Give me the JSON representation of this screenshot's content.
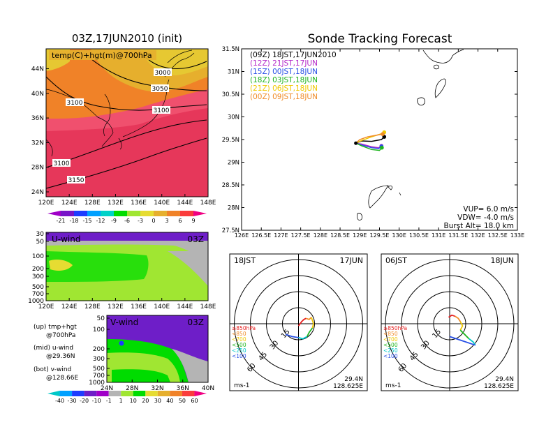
{
  "map_panel": {
    "title": "03Z,17JUN2010 (init)",
    "label": "temp(C)+hgt(m)@700hPa",
    "x_ticks": [
      "120E",
      "124E",
      "128E",
      "132E",
      "136E",
      "140E",
      "144E",
      "148E"
    ],
    "y_ticks": [
      "24N",
      "28N",
      "32N",
      "36N",
      "40N",
      "44N"
    ],
    "contour_labels": [
      "3000",
      "3050",
      "3100",
      "3100",
      "3100",
      "3150"
    ],
    "colorbar_ticks": [
      "-21",
      "-18",
      "-15",
      "-12",
      "-9",
      "-6",
      "-3",
      "0",
      "3",
      "6",
      "9"
    ],
    "colorbar_colors": [
      "#a000c8",
      "#7814c8",
      "#1e3cff",
      "#00a0ff",
      "#00d2c8",
      "#00dc00",
      "#a0e632",
      "#e6dc32",
      "#e6af2d",
      "#f08228",
      "#fa3c3c",
      "#f00082"
    ]
  },
  "u_panel": {
    "label": "U-wind",
    "time": "03Z",
    "y_ticks": [
      "30",
      "50",
      "100",
      "200",
      "300",
      "500",
      "700",
      "1000"
    ],
    "x_ticks": [
      "120E",
      "124E",
      "128E",
      "132E",
      "136E",
      "140E",
      "144E",
      "148E"
    ]
  },
  "v_panel": {
    "label": "V-wind",
    "time": "03Z",
    "y_ticks": [
      "50",
      "100",
      "200",
      "300",
      "500",
      "700",
      "1000"
    ],
    "x_ticks": [
      "24N",
      "28N",
      "32N",
      "36N",
      "40N"
    ]
  },
  "legend_notes": [
    {
      "line1": "(up) tmp+hgt",
      "line2": "@700hPa"
    },
    {
      "line1": "(mid) u-wind",
      "line2": "@29.36N"
    },
    {
      "line1": "(bot) v-wind",
      "line2": "@128.66E"
    }
  ],
  "wind_colorbar": {
    "ticks": [
      "-40",
      "-30",
      "-20",
      "-10",
      "-1",
      "1",
      "10",
      "20",
      "30",
      "40",
      "50",
      "60"
    ],
    "colors": [
      "#00c8c8",
      "#00a0ff",
      "#1e3cff",
      "#6e1ec8",
      "#a000c8",
      "#b4b4b4",
      "#a0e632",
      "#00dc00",
      "#e6dc32",
      "#e6af2d",
      "#f08228",
      "#fa3c3c",
      "#f00082"
    ]
  },
  "tracking": {
    "title": "Sonde Tracking Forecast",
    "x_ticks": [
      "126E",
      "126.5E",
      "127E",
      "127.5E",
      "128E",
      "128.5E",
      "129E",
      "129.5E",
      "130E",
      "130.5E",
      "131E",
      "131.5E",
      "132E",
      "132.5E",
      "133E"
    ],
    "y_ticks": [
      "27.5N",
      "28N",
      "28.5N",
      "29N",
      "29.5N",
      "30N",
      "30.5N",
      "31N",
      "31.5N"
    ],
    "legend": [
      {
        "text": "(09Z) 18JST,17JUN2010",
        "color": "#000000"
      },
      {
        "text": "(12Z) 21JST,17JUN",
        "color": "#b428c8"
      },
      {
        "text": "(15Z) 00JST,18JUN",
        "color": "#2850e6"
      },
      {
        "text": "(18Z) 03JST,18JUN",
        "color": "#1eb41e"
      },
      {
        "text": "(21Z) 06JST,18JUN",
        "color": "#f0c800"
      },
      {
        "text": "(00Z) 09JST,18JUN",
        "color": "#f08c28"
      }
    ],
    "params": [
      "VUP= 6.0 m/s",
      "VDW= -4.0 m/s",
      "Burst Alt= 18.0 km"
    ]
  },
  "chart_data": [
    {
      "type": "line",
      "title": "Sonde Tracking Forecast",
      "xlabel": "",
      "ylabel": "",
      "xlim": [
        126,
        133
      ],
      "ylim": [
        27.5,
        31.5
      ],
      "series": [
        {
          "name": "(09Z) 18JST,17JUN2010",
          "color": "#000000",
          "x": [
            128.9,
            129.05,
            129.3,
            129.55,
            129.62
          ],
          "y": [
            29.42,
            29.47,
            29.46,
            29.5,
            29.56
          ]
        },
        {
          "name": "(12Z) 21JST,17JUN",
          "color": "#b428c8",
          "x": [
            128.9,
            129.05,
            129.3,
            129.48,
            129.55
          ],
          "y": [
            29.42,
            29.4,
            29.34,
            29.32,
            29.36
          ]
        },
        {
          "name": "(15Z) 00JST,18JUN",
          "color": "#2850e6",
          "x": [
            128.9,
            129.05,
            129.3,
            129.48,
            129.55
          ],
          "y": [
            29.42,
            29.38,
            29.32,
            29.3,
            29.35
          ]
        },
        {
          "name": "(18Z) 03JST,18JUN",
          "color": "#1eb41e",
          "x": [
            128.9,
            129.05,
            129.3,
            129.5,
            129.56
          ],
          "y": [
            29.42,
            29.36,
            29.28,
            29.26,
            29.32
          ]
        },
        {
          "name": "(21Z) 06JST,18JUN",
          "color": "#f0c800",
          "x": [
            128.9,
            129.05,
            129.3,
            129.52,
            129.62
          ],
          "y": [
            29.42,
            29.48,
            29.56,
            29.62,
            29.66
          ]
        },
        {
          "name": "(00Z) 09JST,18JUN",
          "color": "#f08c28",
          "x": [
            128.9,
            129.0,
            129.2,
            129.45,
            129.58
          ],
          "y": [
            29.42,
            29.5,
            29.56,
            29.6,
            29.62
          ]
        }
      ]
    },
    {
      "type": "scatter",
      "title": "18JST 17JUN",
      "date": "17JUN",
      "time": "18JST",
      "units": "ms-1",
      "ring_labels": [
        "15",
        "30",
        "45",
        "60"
      ],
      "location": [
        "29.4N",
        "128.625E"
      ],
      "legend_levels": [
        {
          "label": "≥850hPa",
          "color": "#e61e1e"
        },
        {
          "label": "<850",
          "color": "#f08c28"
        },
        {
          "label": "<700",
          "color": "#f0c800"
        },
        {
          "label": "<500",
          "color": "#1eb41e"
        },
        {
          "label": "<250",
          "color": "#00c8c8"
        },
        {
          "label": "<100",
          "color": "#2850e6"
        }
      ],
      "series": [
        {
          "name": "≥850hPa",
          "color": "#e61e1e",
          "x": [
            0,
            3,
            5,
            7
          ],
          "y": [
            -2,
            2,
            4,
            5
          ]
        },
        {
          "name": "<850",
          "color": "#f08c28",
          "x": [
            7,
            10,
            12
          ],
          "y": [
            5,
            4,
            6
          ]
        },
        {
          "name": "<700",
          "color": "#f0c800",
          "x": [
            12,
            14,
            13
          ],
          "y": [
            6,
            0,
            -4
          ]
        },
        {
          "name": "<500",
          "color": "#1eb41e",
          "x": [
            13,
            10,
            8
          ],
          "y": [
            -4,
            -8,
            -12
          ]
        },
        {
          "name": "<250",
          "color": "#00c8c8",
          "x": [
            8,
            4,
            0
          ],
          "y": [
            -12,
            -14,
            -13
          ]
        },
        {
          "name": "<100",
          "color": "#2850e6",
          "x": [
            0,
            -6,
            -12
          ],
          "y": [
            -13,
            -12,
            -10
          ]
        }
      ]
    },
    {
      "type": "scatter",
      "title": "06JST 18JUN",
      "date": "18JUN",
      "time": "06JST",
      "units": "ms-1",
      "ring_labels": [
        "15",
        "30",
        "45",
        "60"
      ],
      "location": [
        "29.4N",
        "128.625E"
      ],
      "legend_levels": [
        {
          "label": "≥850hPa",
          "color": "#e61e1e"
        },
        {
          "label": "<850",
          "color": "#f08c28"
        },
        {
          "label": "<700",
          "color": "#f0c800"
        },
        {
          "label": "<500",
          "color": "#1eb41e"
        },
        {
          "label": "<250",
          "color": "#00c8c8"
        },
        {
          "label": "<100",
          "color": "#2850e6"
        }
      ],
      "series": [
        {
          "name": "≥850hPa",
          "color": "#e61e1e",
          "x": [
            -1,
            2,
            5
          ],
          "y": [
            6,
            8,
            7
          ]
        },
        {
          "name": "<850",
          "color": "#f08c28",
          "x": [
            5,
            8,
            10
          ],
          "y": [
            7,
            5,
            2
          ]
        },
        {
          "name": "<700",
          "color": "#f0c800",
          "x": [
            10,
            12,
            10
          ],
          "y": [
            2,
            -2,
            -6
          ]
        },
        {
          "name": "<500",
          "color": "#1eb41e",
          "x": [
            10,
            14,
            18
          ],
          "y": [
            -6,
            -10,
            -14
          ]
        },
        {
          "name": "<250",
          "color": "#00c8c8",
          "x": [
            18,
            22,
            24
          ],
          "y": [
            -14,
            -17,
            -20
          ]
        },
        {
          "name": "<100",
          "color": "#2850e6",
          "x": [
            24,
            12,
            0
          ],
          "y": [
            -20,
            -16,
            -12
          ]
        }
      ]
    }
  ]
}
